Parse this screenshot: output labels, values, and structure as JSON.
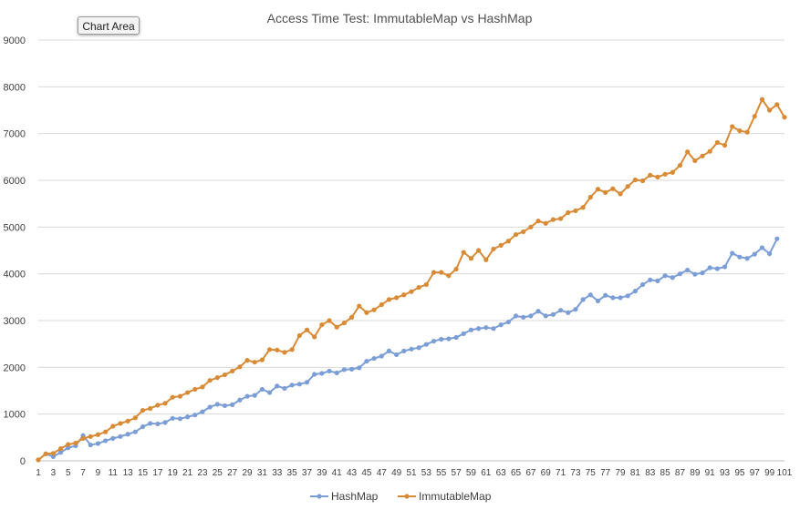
{
  "tooltip": {
    "label": "Chart Area"
  },
  "chart_data": {
    "type": "line",
    "title": "Access Time Test: ImmutableMap vs HashMap",
    "xlabel": "",
    "ylabel": "",
    "ylim": [
      0,
      9000
    ],
    "yticks": [
      0,
      1000,
      2000,
      3000,
      4000,
      5000,
      6000,
      7000,
      8000,
      9000
    ],
    "xlim": [
      1,
      101
    ],
    "xticks": [
      1,
      3,
      5,
      7,
      9,
      11,
      13,
      15,
      17,
      19,
      21,
      23,
      25,
      27,
      29,
      31,
      33,
      35,
      37,
      39,
      41,
      43,
      45,
      47,
      49,
      51,
      53,
      55,
      57,
      59,
      61,
      63,
      65,
      67,
      69,
      71,
      73,
      75,
      77,
      79,
      81,
      83,
      85,
      87,
      89,
      91,
      93,
      95,
      97,
      99,
      101
    ],
    "grid": true,
    "legend": "bottom",
    "x": [
      1,
      2,
      3,
      4,
      5,
      6,
      7,
      8,
      9,
      10,
      11,
      12,
      13,
      14,
      15,
      16,
      17,
      18,
      19,
      20,
      21,
      22,
      23,
      24,
      25,
      26,
      27,
      28,
      29,
      30,
      31,
      32,
      33,
      34,
      35,
      36,
      37,
      38,
      39,
      40,
      41,
      42,
      43,
      44,
      45,
      46,
      47,
      48,
      49,
      50,
      51,
      52,
      53,
      54,
      55,
      56,
      57,
      58,
      59,
      60,
      61,
      62,
      63,
      64,
      65,
      66,
      67,
      68,
      69,
      70,
      71,
      72,
      73,
      74,
      75,
      76,
      77,
      78,
      79,
      80,
      81,
      82,
      83,
      84,
      85,
      86,
      87,
      88,
      89,
      90,
      91,
      92,
      93,
      94,
      95,
      96,
      97,
      98,
      99,
      100,
      101
    ],
    "series": [
      {
        "name": "HashMap",
        "color": "#7c9ed6",
        "values": [
          20,
          150,
          90,
          180,
          280,
          320,
          540,
          340,
          370,
          430,
          480,
          520,
          570,
          620,
          730,
          800,
          790,
          820,
          910,
          900,
          940,
          980,
          1050,
          1150,
          1210,
          1180,
          1200,
          1300,
          1380,
          1400,
          1530,
          1460,
          1600,
          1550,
          1620,
          1640,
          1680,
          1850,
          1870,
          1920,
          1880,
          1950,
          1960,
          1990,
          2130,
          2190,
          2240,
          2350,
          2270,
          2350,
          2390,
          2420,
          2490,
          2560,
          2600,
          2610,
          2640,
          2720,
          2800,
          2830,
          2850,
          2830,
          2910,
          2970,
          3100,
          3070,
          3100,
          3200,
          3100,
          3130,
          3220,
          3170,
          3240,
          3450,
          3550,
          3420,
          3540,
          3490,
          3490,
          3530,
          3630,
          3770,
          3870,
          3850,
          3960,
          3920,
          4000,
          4080,
          3990,
          4020,
          4130,
          4110,
          4150,
          4440,
          4360,
          4330,
          4420,
          4560,
          4430,
          4750,
          null
        ]
      },
      {
        "name": "ImmutableMap",
        "color": "#d98a35",
        "values": [
          20,
          150,
          160,
          260,
          350,
          380,
          480,
          520,
          560,
          620,
          740,
          800,
          850,
          920,
          1080,
          1120,
          1190,
          1230,
          1360,
          1380,
          1460,
          1530,
          1580,
          1720,
          1780,
          1840,
          1920,
          2010,
          2150,
          2110,
          2160,
          2380,
          2370,
          2320,
          2380,
          2680,
          2800,
          2650,
          2910,
          3000,
          2860,
          2950,
          3070,
          3310,
          3170,
          3230,
          3340,
          3450,
          3490,
          3550,
          3620,
          3710,
          3770,
          4030,
          4030,
          3960,
          4100,
          4460,
          4330,
          4500,
          4300,
          4530,
          4610,
          4700,
          4840,
          4900,
          5000,
          5130,
          5080,
          5160,
          5180,
          5310,
          5350,
          5420,
          5640,
          5810,
          5740,
          5820,
          5710,
          5870,
          6010,
          5990,
          6110,
          6070,
          6130,
          6170,
          6320,
          6610,
          6420,
          6520,
          6620,
          6810,
          6750,
          7150,
          7060,
          7030,
          7370,
          7730,
          7500,
          7620,
          7350
        ]
      }
    ]
  }
}
